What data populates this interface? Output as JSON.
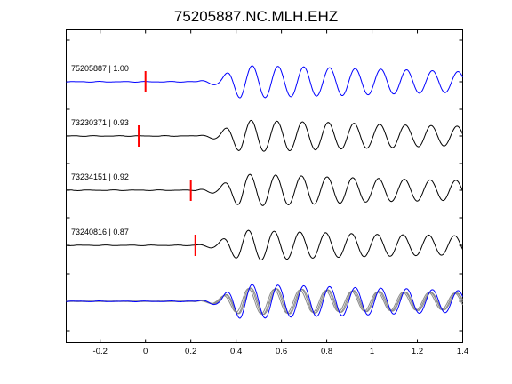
{
  "chart_data": {
    "type": "line",
    "title": "75205887.NC.MLH.EHZ",
    "xlabel": "",
    "ylabel": "",
    "xlim": [
      -0.35,
      1.4
    ],
    "xticks": [
      -0.2,
      0,
      0.2,
      0.4,
      0.6,
      0.8,
      1,
      1.2,
      1.4
    ],
    "xtick_labels": [
      "-0.2",
      "0",
      "0.2",
      "0.4",
      "0.6",
      "0.8",
      "1",
      "1.2",
      "1.4"
    ],
    "grid": false,
    "colors": {
      "reference": "#0000ff",
      "trace": "#000000",
      "overlay": "#8a8a8a",
      "pick": "#ff0000"
    },
    "traces": [
      {
        "label": "75205887 | 1.00",
        "pick_time": 0.0,
        "color": "blue"
      },
      {
        "label": "73230371 | 0.93",
        "pick_time": -0.03,
        "color": "black"
      },
      {
        "label": "73234151 | 0.92",
        "pick_time": 0.2,
        "color": "black"
      },
      {
        "label": "73240816 | 0.87",
        "pick_time": 0.22,
        "color": "black"
      }
    ],
    "stack": {
      "label": "",
      "members": [
        "75205887",
        "73230371",
        "73234151",
        "73240816"
      ]
    }
  }
}
